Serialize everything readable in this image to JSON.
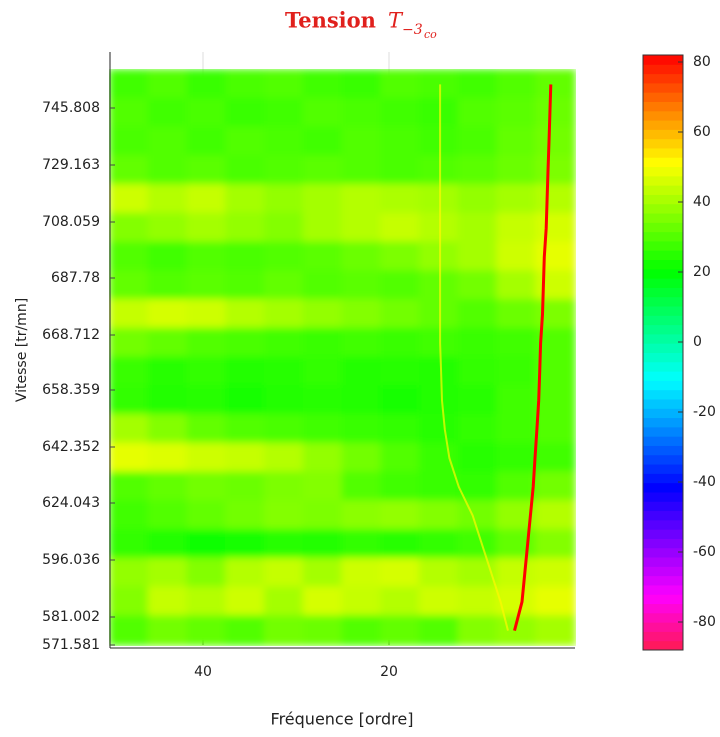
{
  "chart_data": {
    "type": "heatmap",
    "title": "Tension",
    "title_symbol": "T",
    "title_subscript": "−3",
    "title_subsubscript": "co",
    "x_label": "Fréquence [ordre]",
    "y_label": "Vitesse [tr/mn]",
    "xlim": [
      50,
      0
    ],
    "xticks": [
      40,
      20
    ],
    "grid": true,
    "y_categories": [
      "571.581",
      "581.002",
      "596.036",
      "624.043",
      "642.352",
      "658.359",
      "668.712",
      "687.78",
      "708.059",
      "729.163",
      "745.808"
    ],
    "clim": [
      -88,
      82
    ],
    "cticks": [
      -80,
      -60,
      -40,
      -20,
      0,
      20,
      40,
      60,
      80
    ],
    "colormap": [
      "#ff1a50",
      "#ff00ff",
      "#8000ff",
      "#0000ff",
      "#0080ff",
      "#00ffff",
      "#00ff80",
      "#00ff00",
      "#80ff00",
      "#ffff00",
      "#ff8000",
      "#ff0000"
    ],
    "z": [
      [
        28,
        30,
        27,
        29,
        30,
        28,
        27,
        30,
        29,
        28,
        30,
        32
      ],
      [
        30,
        28,
        29,
        27,
        28,
        30,
        29,
        28,
        27,
        30,
        31,
        33
      ],
      [
        29,
        30,
        28,
        30,
        29,
        28,
        30,
        29,
        28,
        29,
        32,
        34
      ],
      [
        32,
        30,
        31,
        29,
        30,
        31,
        30,
        29,
        30,
        31,
        33,
        35
      ],
      [
        45,
        42,
        44,
        40,
        38,
        40,
        42,
        41,
        40,
        38,
        40,
        42
      ],
      [
        36,
        38,
        40,
        38,
        36,
        40,
        42,
        44,
        42,
        40,
        44,
        46
      ],
      [
        30,
        28,
        30,
        29,
        30,
        31,
        33,
        35,
        38,
        40,
        45,
        48
      ],
      [
        32,
        30,
        31,
        30,
        32,
        30,
        31,
        30,
        32,
        34,
        40,
        45
      ],
      [
        44,
        46,
        45,
        42,
        40,
        38,
        36,
        34,
        32,
        30,
        33,
        35
      ],
      [
        34,
        32,
        30,
        29,
        28,
        27,
        28,
        27,
        28,
        27,
        28,
        30
      ],
      [
        27,
        25,
        26,
        24,
        25,
        26,
        24,
        25,
        24,
        26,
        27,
        30
      ],
      [
        26,
        24,
        25,
        23,
        24,
        25,
        24,
        23,
        24,
        25,
        28,
        30
      ],
      [
        40,
        36,
        32,
        30,
        29,
        28,
        27,
        26,
        25,
        26,
        28,
        30
      ],
      [
        48,
        47,
        45,
        44,
        42,
        38,
        34,
        30,
        27,
        25,
        26,
        28
      ],
      [
        30,
        32,
        34,
        33,
        35,
        36,
        30,
        28,
        27,
        26,
        30,
        34
      ],
      [
        28,
        30,
        32,
        34,
        36,
        35,
        37,
        38,
        36,
        34,
        38,
        42
      ],
      [
        26,
        24,
        22,
        23,
        25,
        24,
        26,
        25,
        26,
        28,
        32,
        36
      ],
      [
        38,
        40,
        36,
        42,
        44,
        40,
        45,
        46,
        42,
        40,
        44,
        45
      ],
      [
        36,
        44,
        42,
        45,
        40,
        46,
        44,
        42,
        45,
        44,
        46,
        48
      ],
      [
        30,
        34,
        32,
        30,
        34,
        33,
        30,
        32,
        30,
        36,
        38,
        40
      ]
    ],
    "ridges": [
      {
        "value": 82,
        "x": [
          2.6,
          2.7,
          2.8,
          2.9,
          3.0,
          3.1,
          3.3,
          3.4,
          3.5,
          3.7,
          3.8,
          3.9,
          4.1,
          4.3,
          4.5,
          4.8,
          5.1,
          5.4,
          5.7,
          6.5
        ]
      },
      {
        "value": 52,
        "x": [
          14.5,
          14.5,
          14.5,
          14.5,
          14.5,
          14.5,
          14.5,
          14.5,
          14.5,
          14.5,
          14.4,
          14.3,
          14.0,
          13.5,
          12.5,
          11,
          10,
          9,
          8,
          7.2
        ]
      }
    ]
  }
}
